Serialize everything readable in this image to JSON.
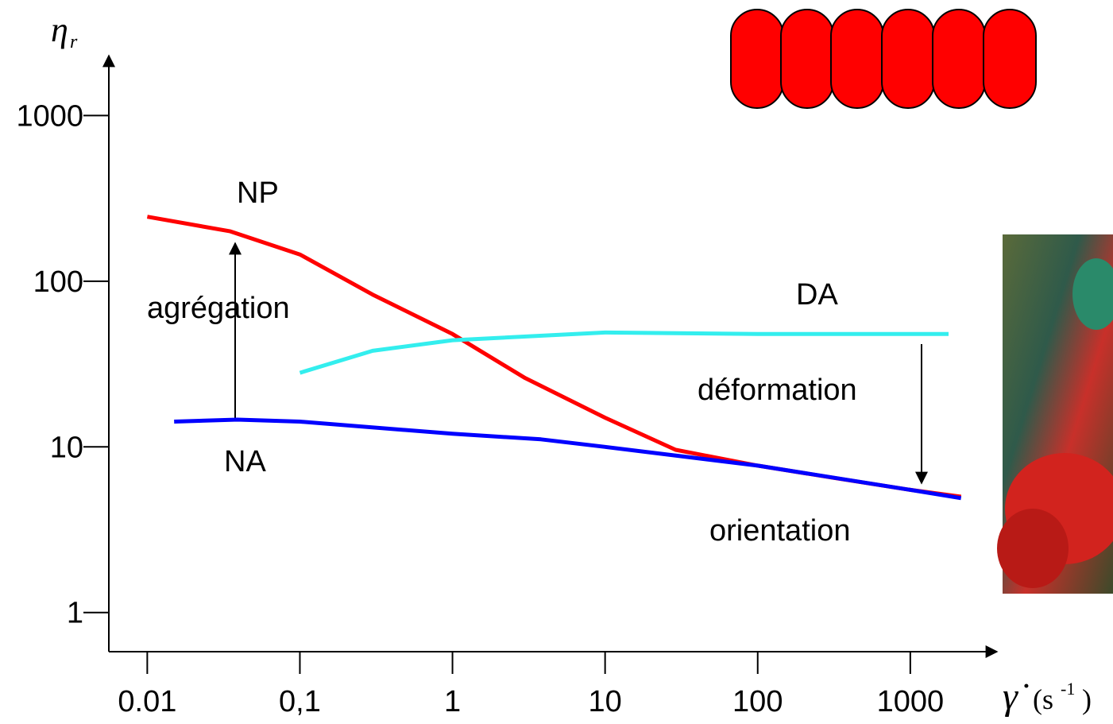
{
  "chart_data": {
    "type": "line",
    "y_label": "η",
    "y_label_sub": "r",
    "x_label": "γ̇",
    "x_unit_parts": [
      "(s",
      "-1",
      ")"
    ],
    "log_x": true,
    "log_y": true,
    "xlim": [
      0.0056,
      3700
    ],
    "ylim": [
      0.58,
      2300
    ],
    "xticks": [
      0.01,
      {
        "value": 0.1,
        "label": "0,1"
      },
      1,
      10,
      100,
      1000
    ],
    "yticks": [
      1,
      10,
      100,
      1000
    ],
    "series": [
      {
        "name": "NP",
        "color": "#ff0000",
        "x": [
          0.01,
          0.035,
          0.1,
          0.3,
          1,
          3,
          10,
          29,
          100,
          316,
          1000,
          2150
        ],
        "values": [
          245,
          200,
          145,
          83,
          48,
          26,
          15,
          9.6,
          7.7,
          6.5,
          5.5,
          5.0
        ]
      },
      {
        "name": "NA",
        "color": "#0000ff",
        "x": [
          0.015,
          0.039,
          0.1,
          1,
          3.8,
          10,
          100,
          1000,
          2150
        ],
        "values": [
          14.2,
          14.6,
          14.2,
          12.0,
          11.1,
          10,
          7.7,
          5.5,
          4.9
        ]
      },
      {
        "name": "DA",
        "color": "#33eeee",
        "x": [
          0.1,
          0.3,
          1,
          10,
          100,
          1780
        ],
        "values": [
          28,
          38,
          44,
          49,
          48,
          48
        ]
      }
    ],
    "annotations": [
      "agrégation",
      "déformation",
      "orientation"
    ]
  }
}
